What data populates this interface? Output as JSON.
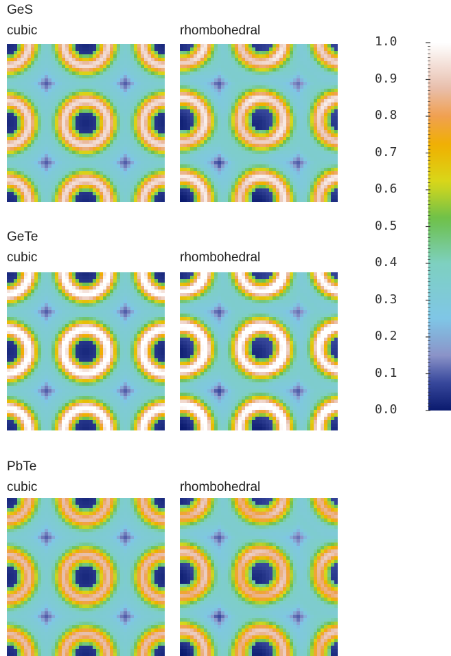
{
  "materials": [
    {
      "name": "GeS",
      "left_label": "cubic",
      "right_label": "rhombohedral"
    },
    {
      "name": "GeTe",
      "left_label": "cubic",
      "right_label": "rhombohedral"
    },
    {
      "name": "PbTe",
      "left_label": "cubic",
      "right_label": "rhombohedral"
    }
  ],
  "colorbar": {
    "ticks": [
      "1.0",
      "0.9",
      "0.8",
      "0.7",
      "0.6",
      "0.5",
      "0.4",
      "0.3",
      "0.2",
      "0.1",
      "0.0"
    ],
    "min": 0.0,
    "max": 1.0,
    "colors": {
      "0.00": "#0a1a6e",
      "0.08": "#3a4a9e",
      "0.15": "#8b93c8",
      "0.25": "#7fc6e6",
      "0.40": "#7ed0c0",
      "0.52": "#6cc04a",
      "0.62": "#d8d81a",
      "0.72": "#f0b000",
      "0.80": "#f0a050",
      "0.88": "#e8c0b0",
      "1.00": "#ffffff"
    }
  }
}
